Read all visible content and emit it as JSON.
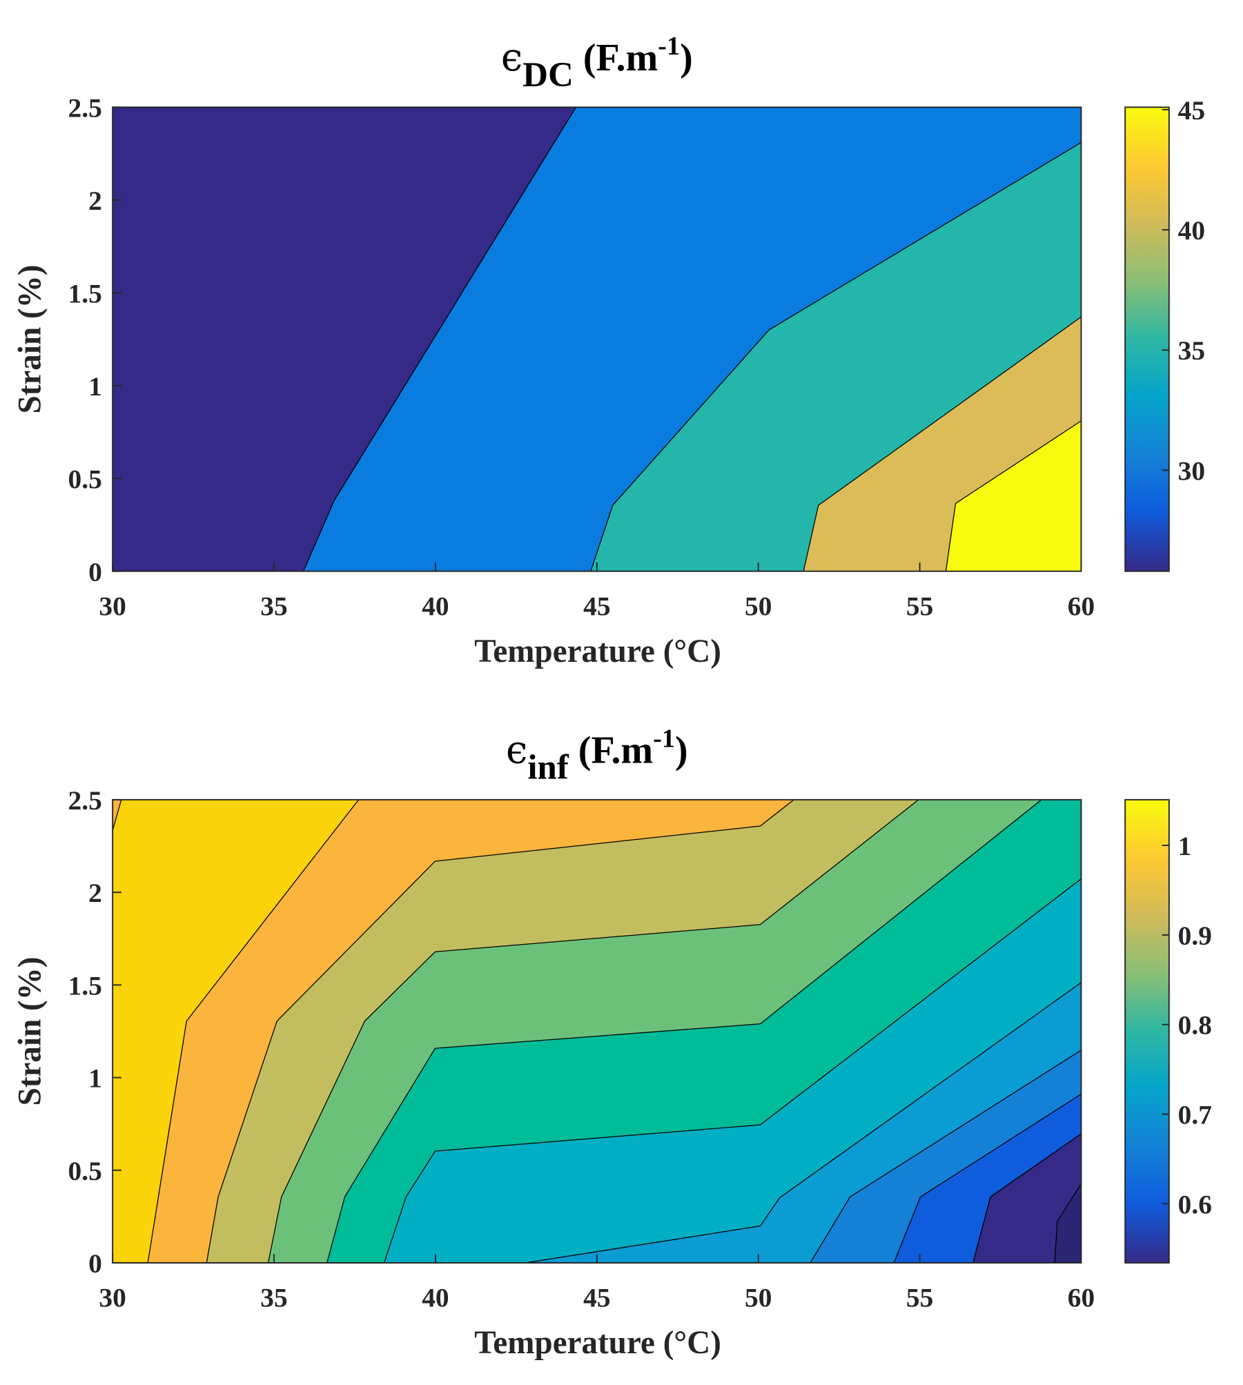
{
  "chart_data": [
    {
      "type": "contour",
      "title": {
        "symbol": "ϵ",
        "subscript": "DC",
        "text": " (F.m",
        "superscript": "-1",
        "end": ")"
      },
      "x_label": "Temperature (°C)",
      "y_label": "Strain (%)",
      "xlim": [
        30,
        60
      ],
      "xticks": [
        30,
        35,
        40,
        45,
        50,
        55,
        60
      ],
      "ylim": [
        0,
        2.5
      ],
      "yticks": [
        0,
        0.5,
        1,
        1.5,
        2,
        2.5
      ],
      "background_color": "#352a87",
      "colorbar": {
        "lim": [
          25.8,
          45.1
        ],
        "ticks": [
          30,
          35,
          40,
          45
        ]
      },
      "regions": [
        {
          "level": 30,
          "color": "#0a7bdf",
          "x": [
            35.91,
            36.86,
            44.35,
            60,
            60
          ],
          "y": [
            0,
            0.38,
            2.5,
            2.5,
            0
          ]
        },
        {
          "level": 35,
          "color": "#24b6ab",
          "x": [
            44.81,
            45.49,
            50.33,
            60,
            60
          ],
          "y": [
            0,
            0.355,
            1.3,
            2.31,
            0
          ]
        },
        {
          "level": 40,
          "color": "#dbbc58",
          "x": [
            51.4,
            51.86,
            60,
            60
          ],
          "y": [
            0,
            0.355,
            1.37,
            0
          ]
        },
        {
          "level": 45,
          "color": "#f9fb0e",
          "x": [
            55.81,
            56.11,
            60,
            60
          ],
          "y": [
            0,
            0.365,
            0.81,
            0
          ]
        }
      ]
    },
    {
      "type": "contour",
      "title": {
        "symbol": "ϵ",
        "subscript": "inf",
        "text": " (F.m",
        "superscript": "-1",
        "end": ")"
      },
      "x_label": "Temperature (°C)",
      "y_label": "Strain (%)",
      "xlim": [
        30,
        60
      ],
      "xticks": [
        30,
        35,
        40,
        45,
        50,
        55,
        60
      ],
      "ylim": [
        0,
        2.5
      ],
      "yticks": [
        0,
        0.5,
        1,
        1.5,
        2,
        2.5
      ],
      "background_color": "#2b2575",
      "colorbar": {
        "lim": [
          0.534,
          1.051
        ],
        "ticks": [
          0.6,
          0.7,
          0.8,
          0.9,
          1
        ]
      },
      "regions": [
        {
          "level": 0.55,
          "color": "#352a87",
          "x": [
            59.18,
            59.26,
            60,
            60,
            30,
            30
          ],
          "y": [
            0,
            0.223,
            0.427,
            2.5,
            2.5,
            0
          ]
        },
        {
          "level": 0.6,
          "color": "#0f5cdd",
          "x": [
            56.65,
            57.19,
            60,
            60,
            30,
            30
          ],
          "y": [
            0,
            0.356,
            0.697,
            2.5,
            2.5,
            0
          ]
        },
        {
          "level": 0.65,
          "color": "#1481d6",
          "x": [
            54.2,
            55.02,
            60,
            60,
            30,
            30
          ],
          "y": [
            0,
            0.356,
            0.911,
            2.5,
            2.5,
            0
          ]
        },
        {
          "level": 0.7,
          "color": "#0b9cd4",
          "x": [
            51.61,
            52.84,
            60,
            60,
            30,
            30
          ],
          "y": [
            0,
            0.356,
            1.148,
            2.5,
            2.5,
            0
          ]
        },
        {
          "level": 0.75,
          "color": "#00afc4",
          "x": [
            42.79,
            50.06,
            50.66,
            60,
            60,
            30,
            30
          ],
          "y": [
            0,
            0.199,
            0.351,
            1.513,
            2.5,
            2.5,
            0
          ]
        },
        {
          "level": 0.8,
          "color": "#00bc98",
          "x": [
            38.41,
            39.09,
            39.99,
            50.06,
            60,
            60,
            30,
            30
          ],
          "y": [
            0,
            0.356,
            0.603,
            0.745,
            2.073,
            2.5,
            2.5,
            0
          ]
        },
        {
          "level": 0.85,
          "color": "#6cc17a",
          "x": [
            36.64,
            37.19,
            39.99,
            50.06,
            58.77,
            30,
            30
          ],
          "y": [
            0,
            0.356,
            1.158,
            1.29,
            2.5,
            2.5,
            0
          ]
        },
        {
          "level": 0.9,
          "color": "#c2bd5e",
          "x": [
            34.82,
            35.23,
            37.81,
            39.99,
            50.06,
            54.96,
            30,
            30
          ],
          "y": [
            0,
            0.356,
            1.305,
            1.679,
            1.826,
            2.5,
            2.5,
            0
          ]
        },
        {
          "level": 0.95,
          "color": "#fbb43c",
          "x": [
            32.91,
            33.27,
            35.09,
            39.99,
            50.06,
            51.1,
            30,
            30
          ],
          "y": [
            0,
            0.356,
            1.305,
            2.168,
            2.358,
            2.5,
            2.5,
            0
          ]
        },
        {
          "level": 1,
          "color": "#fad30a",
          "x": [
            31.09,
            32.29,
            37.62,
            30.27,
            30,
            30
          ],
          "y": [
            0,
            1.305,
            2.5,
            2.5,
            2.334,
            0
          ]
        }
      ]
    }
  ]
}
